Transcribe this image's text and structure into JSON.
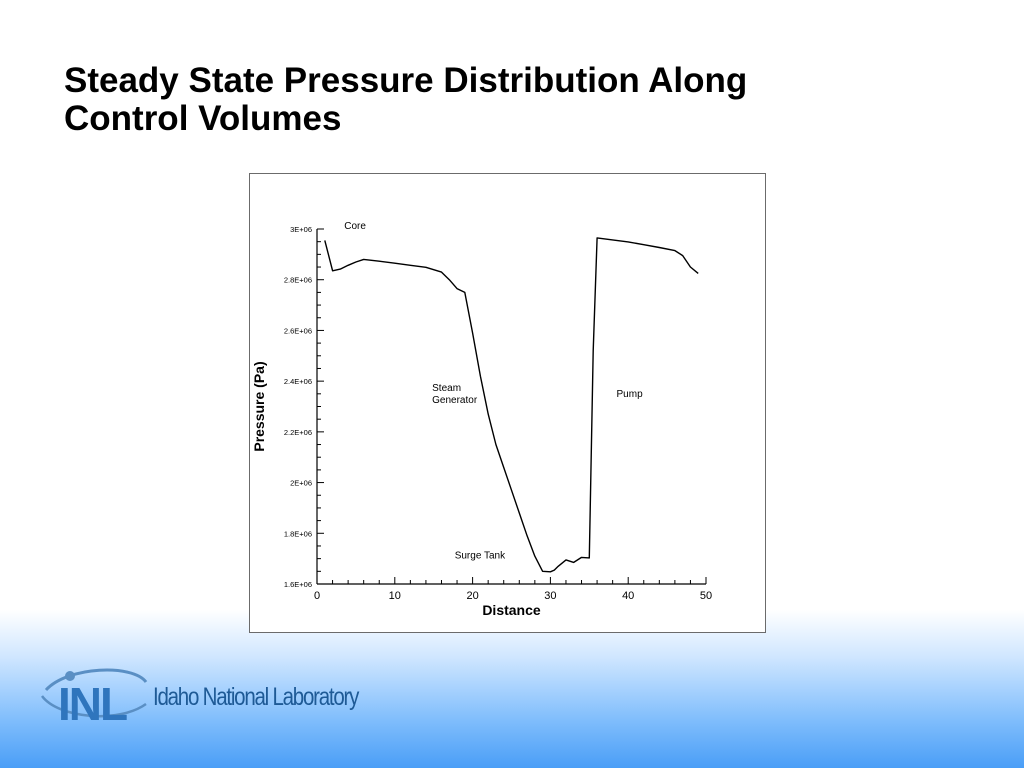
{
  "slide": {
    "title_line1": "Steady State Pressure Distribution Along",
    "title_line2": "Control Volumes"
  },
  "logo": {
    "mark_text": "INL",
    "text": "Idaho National Laboratory",
    "color": "#1e5a96"
  },
  "chart_data": {
    "type": "line",
    "title": "",
    "xlabel": "Distance",
    "ylabel": "Pressure (Pa)",
    "xlim": [
      0,
      50
    ],
    "ylim": [
      1600000,
      3000000
    ],
    "x_ticks": [
      0,
      10,
      20,
      30,
      40,
      50
    ],
    "x_tick_labels": [
      "0",
      "10",
      "20",
      "30",
      "40",
      "50"
    ],
    "y_ticks": [
      1600000,
      1800000,
      2000000,
      2200000,
      2400000,
      2600000,
      2800000,
      3000000
    ],
    "y_tick_labels": [
      "1.6E+06",
      "1.8E+06",
      "2E+06",
      "2.2E+06",
      "2.4E+06",
      "2.6E+06",
      "2.8E+06",
      "3E+06"
    ],
    "grid": false,
    "line_color": "#000000",
    "series": [
      {
        "x": [
          1,
          2,
          3,
          4,
          5,
          6,
          8,
          10,
          12,
          14,
          16,
          17,
          18,
          19,
          20,
          21,
          22,
          23,
          24,
          25,
          26,
          27,
          28,
          29,
          30,
          30.5,
          31,
          32,
          33,
          34,
          35,
          35.5,
          36,
          38,
          40,
          42,
          44,
          46,
          47,
          48,
          49
        ],
        "y": [
          2955000,
          2835000,
          2842000,
          2857000,
          2870000,
          2880000,
          2873000,
          2865000,
          2857000,
          2849000,
          2830000,
          2800000,
          2765000,
          2750000,
          2590000,
          2420000,
          2270000,
          2150000,
          2060000,
          1970000,
          1880000,
          1790000,
          1710000,
          1650000,
          1648000,
          1655000,
          1670000,
          1695000,
          1685000,
          1705000,
          1703000,
          2520000,
          2965000,
          2957000,
          2949000,
          2938000,
          2927000,
          2915000,
          2895000,
          2850000,
          2825000
        ]
      }
    ],
    "annotations": [
      {
        "text": "Core",
        "x": 3.5,
        "y": 3000000
      },
      {
        "text": "Steam",
        "x": 14.8,
        "y": 2362000
      },
      {
        "text": "Generator",
        "x": 14.8,
        "y": 2314000
      },
      {
        "text": "Pump",
        "x": 38.5,
        "y": 2337000
      },
      {
        "text": "Surge Tank",
        "x": 17.7,
        "y": 1701000
      }
    ]
  }
}
